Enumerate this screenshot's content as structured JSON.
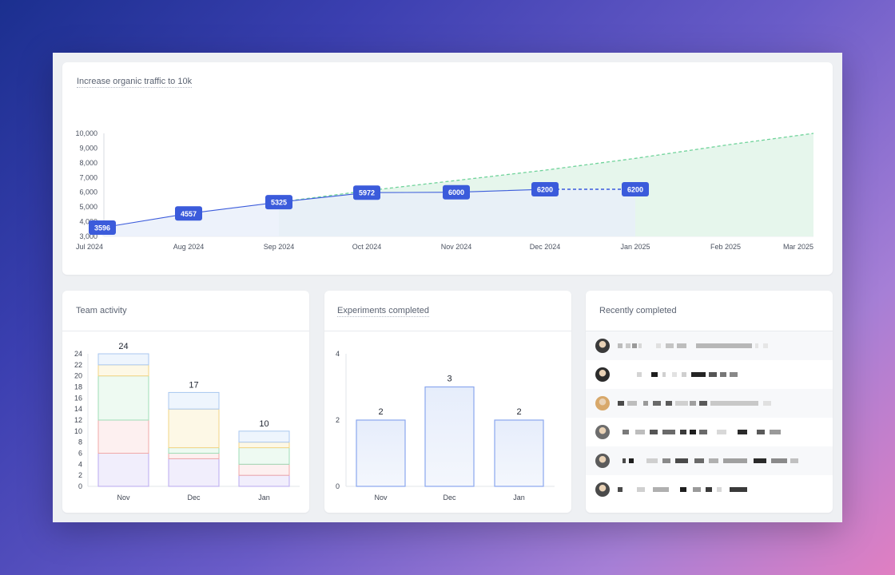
{
  "traffic": {
    "title": "Increase organic traffic to 10k",
    "y_ticks": [
      "10,000",
      "9,000",
      "8,000",
      "7,000",
      "6,000",
      "5,000",
      "4,000",
      "3,000"
    ],
    "x_ticks": [
      "Jul 2024",
      "Aug 2024",
      "Sep 2024",
      "Oct 2024",
      "Nov 2024",
      "Dec 2024",
      "Jan 2025",
      "Feb 2025",
      "Mar 2025"
    ],
    "actual_labels": [
      "3596",
      "4557",
      "5325",
      "5972",
      "6000",
      "6200"
    ],
    "projection_label": "6200",
    "colors": {
      "actual": "#3b5bdb",
      "target": "#6fd39a",
      "target_fill": "#e3f5ea",
      "area_fill": "#e9effa"
    }
  },
  "chart_data": [
    {
      "type": "line",
      "title": "Increase organic traffic to 10k",
      "x": [
        "Jul 2024",
        "Aug 2024",
        "Sep 2024",
        "Oct 2024",
        "Nov 2024",
        "Dec 2024",
        "Jan 2025",
        "Feb 2025",
        "Mar 2025"
      ],
      "series": [
        {
          "values": [
            3596,
            4557,
            5325,
            5972,
            6000,
            6200,
            6200,
            null,
            null
          ]
        },
        {
          "values": [
            null,
            null,
            5325,
            6100,
            6800,
            7500,
            8300,
            9200,
            10000
          ]
        }
      ],
      "ylim": [
        3000,
        10000
      ],
      "grid": false
    },
    {
      "type": "bar",
      "title": "Team activity",
      "categories": [
        "Nov",
        "Dec",
        "Jan"
      ],
      "totals": [
        24,
        17,
        10
      ],
      "series": [
        {
          "values": [
            6,
            5,
            2
          ]
        },
        {
          "values": [
            6,
            1,
            2
          ]
        },
        {
          "values": [
            8,
            1,
            3
          ]
        },
        {
          "values": [
            2,
            7,
            1
          ]
        },
        {
          "values": [
            2,
            3,
            2
          ]
        }
      ],
      "ylim": [
        0,
        24
      ],
      "y_ticks": [
        "24",
        "22",
        "20",
        "18",
        "16",
        "14",
        "12",
        "10",
        "8",
        "6",
        "4",
        "2",
        "0"
      ]
    },
    {
      "type": "bar",
      "title": "Experiments completed",
      "categories": [
        "Nov",
        "Dec",
        "Jan"
      ],
      "values": [
        2,
        3,
        2
      ],
      "ylim": [
        0,
        4
      ],
      "y_ticks": [
        "4",
        "2",
        "0"
      ]
    }
  ],
  "team": {
    "title": "Team activity",
    "categories": [
      "Nov",
      "Dec",
      "Jan"
    ],
    "totals": [
      "24",
      "17",
      "10"
    ],
    "y_ticks": [
      "24",
      "22",
      "20",
      "18",
      "16",
      "14",
      "12",
      "10",
      "8",
      "6",
      "4",
      "2",
      "0"
    ],
    "segment_colors": [
      {
        "fill": "#f1eefc",
        "stroke": "#b9a8ef"
      },
      {
        "fill": "#fdf0f0",
        "stroke": "#f0a8a8"
      },
      {
        "fill": "#eefaf2",
        "stroke": "#9fdcb6"
      },
      {
        "fill": "#fdf8e6",
        "stroke": "#f2d484"
      },
      {
        "fill": "#eef5fd",
        "stroke": "#a9c7ef"
      }
    ]
  },
  "experiments": {
    "title": "Experiments completed",
    "categories": [
      "Nov",
      "Dec",
      "Jan"
    ],
    "values": [
      "2",
      "3",
      "2"
    ],
    "y_ticks": [
      "4",
      "2",
      "0"
    ]
  },
  "recent": {
    "title": "Recently completed",
    "avatar_colors": [
      "#3a3a3a",
      "#2c2c2c",
      "#d8a86a",
      "#6d6d6d",
      "#5b5b5b",
      "#4a4a4a"
    ]
  }
}
